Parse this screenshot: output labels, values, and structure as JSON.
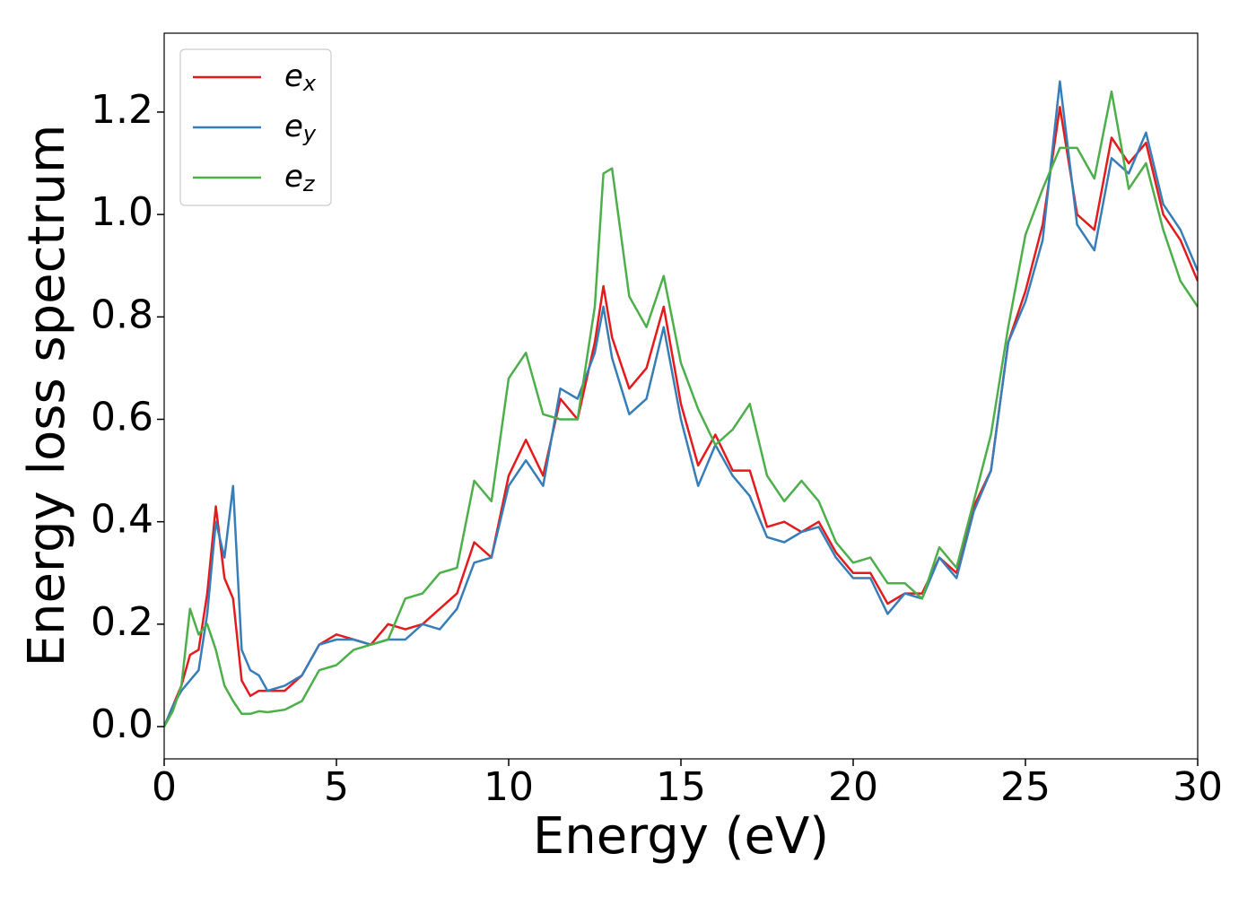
{
  "chart_data": {
    "type": "line",
    "xlabel": "Energy (eV)",
    "ylabel": "Energy loss spectrum",
    "x": [
      0,
      0.25,
      0.5,
      0.75,
      1,
      1.25,
      1.5,
      1.75,
      2,
      2.25,
      2.5,
      2.75,
      3,
      3.5,
      4,
      4.5,
      5,
      5.5,
      6,
      6.5,
      7,
      7.5,
      8,
      8.5,
      9,
      9.5,
      10,
      10.5,
      11,
      11.5,
      12,
      12.5,
      12.75,
      13,
      13.5,
      14,
      14.5,
      15,
      15.5,
      16,
      16.5,
      17,
      17.5,
      18,
      18.5,
      19,
      19.5,
      20,
      20.5,
      21,
      21.5,
      22,
      22.5,
      23,
      23.5,
      24,
      24.5,
      25,
      25.5,
      26,
      26.5,
      27,
      27.5,
      28,
      28.5,
      29,
      29.5,
      30
    ],
    "series": [
      {
        "name": "e_x",
        "color": "#e41a1c",
        "values": [
          0,
          0.04,
          0.08,
          0.14,
          0.15,
          0.26,
          0.43,
          0.29,
          0.25,
          0.09,
          0.06,
          0.07,
          0.07,
          0.07,
          0.1,
          0.16,
          0.18,
          0.17,
          0.16,
          0.2,
          0.19,
          0.2,
          0.23,
          0.26,
          0.36,
          0.33,
          0.49,
          0.56,
          0.49,
          0.64,
          0.6,
          0.75,
          0.86,
          0.76,
          0.66,
          0.7,
          0.82,
          0.63,
          0.51,
          0.57,
          0.5,
          0.5,
          0.39,
          0.4,
          0.38,
          0.4,
          0.34,
          0.3,
          0.3,
          0.24,
          0.26,
          0.26,
          0.33,
          0.3,
          0.43,
          0.5,
          0.75,
          0.85,
          0.98,
          1.21,
          1.0,
          0.97,
          1.15,
          1.1,
          1.14,
          1.0,
          0.95,
          0.87
        ]
      },
      {
        "name": "e_y",
        "color": "#377eb8",
        "values": [
          0,
          0.04,
          0.07,
          0.09,
          0.11,
          0.22,
          0.4,
          0.33,
          0.47,
          0.15,
          0.11,
          0.1,
          0.07,
          0.08,
          0.1,
          0.16,
          0.17,
          0.17,
          0.16,
          0.17,
          0.17,
          0.2,
          0.19,
          0.23,
          0.32,
          0.33,
          0.47,
          0.52,
          0.47,
          0.66,
          0.64,
          0.73,
          0.82,
          0.72,
          0.61,
          0.64,
          0.78,
          0.6,
          0.47,
          0.55,
          0.49,
          0.45,
          0.37,
          0.36,
          0.38,
          0.39,
          0.33,
          0.29,
          0.29,
          0.22,
          0.26,
          0.25,
          0.33,
          0.29,
          0.42,
          0.5,
          0.75,
          0.83,
          0.95,
          1.26,
          0.98,
          0.93,
          1.11,
          1.08,
          1.16,
          1.02,
          0.97,
          0.89
        ]
      },
      {
        "name": "e_z",
        "color": "#4daf4a",
        "values": [
          0,
          0.03,
          0.08,
          0.23,
          0.18,
          0.2,
          0.15,
          0.08,
          0.05,
          0.025,
          0.025,
          0.03,
          0.028,
          0.033,
          0.05,
          0.11,
          0.12,
          0.15,
          0.16,
          0.17,
          0.25,
          0.26,
          0.3,
          0.31,
          0.48,
          0.44,
          0.68,
          0.73,
          0.61,
          0.6,
          0.6,
          0.82,
          1.08,
          1.09,
          0.84,
          0.78,
          0.88,
          0.71,
          0.62,
          0.55,
          0.58,
          0.63,
          0.49,
          0.44,
          0.48,
          0.44,
          0.36,
          0.32,
          0.33,
          0.28,
          0.28,
          0.25,
          0.35,
          0.31,
          0.44,
          0.57,
          0.78,
          0.96,
          1.05,
          1.13,
          1.13,
          1.07,
          1.24,
          1.05,
          1.1,
          0.97,
          0.87,
          0.82
        ]
      }
    ],
    "xlim": [
      0,
      30
    ],
    "xticks": [
      0,
      5,
      10,
      15,
      20,
      25,
      30
    ],
    "ylim": [
      -0.063,
      1.354
    ],
    "yticks": [
      {
        "value": 0,
        "label": "0.0"
      },
      0.2,
      0.4,
      0.6,
      0.8,
      {
        "value": 1,
        "label": "1.0"
      },
      1.2
    ],
    "legend": "upper left",
    "grid": false
  }
}
